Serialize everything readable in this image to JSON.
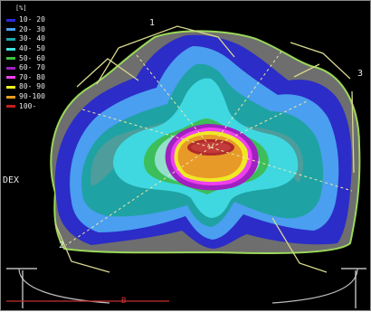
{
  "image": {
    "unit_label": "[%]",
    "legend": [
      {
        "label": "10- 20",
        "color": "#2a2ad8"
      },
      {
        "label": "20- 30",
        "color": "#4aa0f0"
      },
      {
        "label": "30- 40",
        "color": "#20a8a8"
      },
      {
        "label": "40- 50",
        "color": "#40e0e0"
      },
      {
        "label": "50- 60",
        "color": "#40c040"
      },
      {
        "label": "60- 70",
        "color": "#a020c0"
      },
      {
        "label": "70- 80",
        "color": "#f040f0"
      },
      {
        "label": "80- 90",
        "color": "#f0f020"
      },
      {
        "label": "90-100",
        "color": "#e89a20"
      },
      {
        "label": "100-",
        "color": "#c02020"
      }
    ],
    "beam_labels": [
      "1",
      "2",
      "3"
    ],
    "side_label": "DEX",
    "couch_label": "B"
  }
}
